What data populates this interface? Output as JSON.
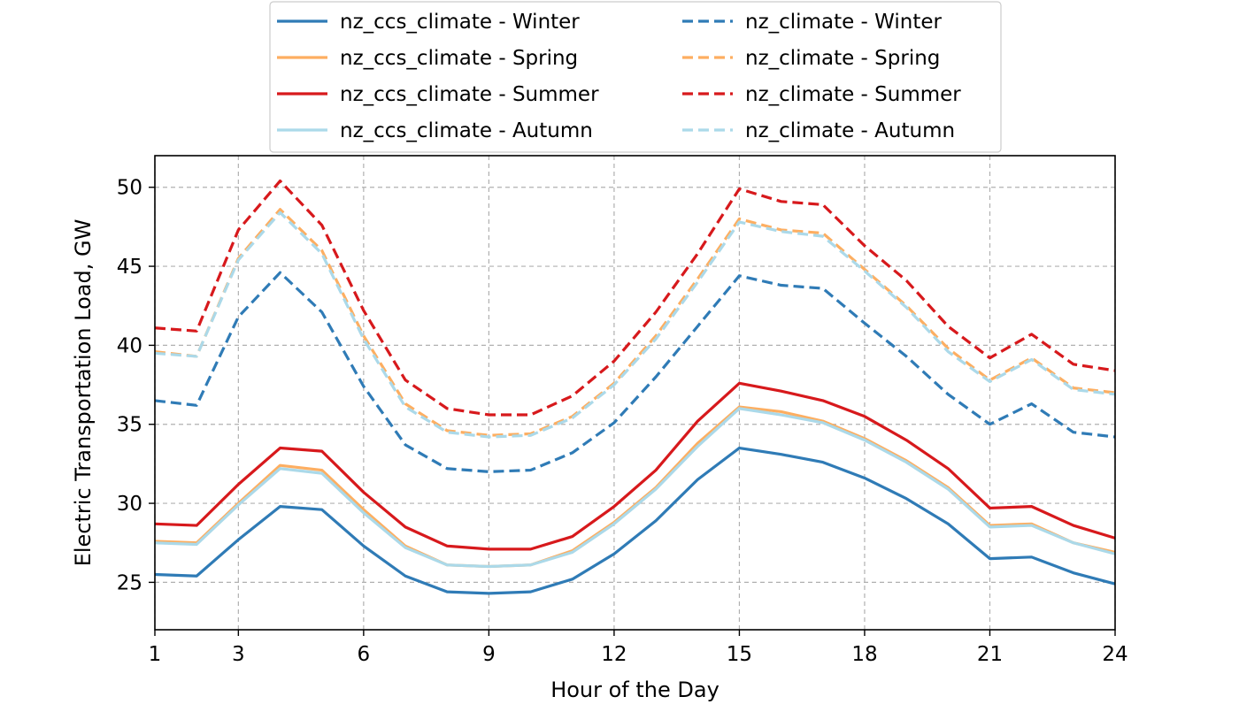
{
  "chart_data": {
    "type": "line",
    "title": "",
    "xlabel": "Hour of the Day",
    "ylabel": "Electric Transportation Load, GW",
    "xlim": [
      1,
      24
    ],
    "ylim": [
      22,
      52
    ],
    "xticks": [
      1,
      3,
      6,
      9,
      12,
      15,
      18,
      21,
      24
    ],
    "yticks": [
      25,
      30,
      35,
      40,
      45,
      50
    ],
    "grid": true,
    "legend_position": "top-center",
    "x": [
      1,
      2,
      3,
      4,
      5,
      6,
      7,
      8,
      9,
      10,
      11,
      12,
      13,
      14,
      15,
      16,
      17,
      18,
      19,
      20,
      21,
      22,
      23,
      24
    ],
    "series": [
      {
        "name": "nz_ccs_climate - Winter",
        "color": "#2f7bb6",
        "dash": "solid",
        "values": [
          25.5,
          25.4,
          27.7,
          29.8,
          29.6,
          27.3,
          25.4,
          24.4,
          24.3,
          24.4,
          25.2,
          26.8,
          28.9,
          31.5,
          33.5,
          33.1,
          32.6,
          31.6,
          30.3,
          28.7,
          26.5,
          26.6,
          25.6,
          24.9
        ]
      },
      {
        "name": "nz_ccs_climate - Spring",
        "color": "#fdae61",
        "dash": "solid",
        "values": [
          27.6,
          27.5,
          30.0,
          32.4,
          32.1,
          29.6,
          27.3,
          26.1,
          26.0,
          26.1,
          27.0,
          28.8,
          31.0,
          33.8,
          36.1,
          35.8,
          35.2,
          34.1,
          32.7,
          31.0,
          28.6,
          28.7,
          27.5,
          26.9
        ]
      },
      {
        "name": "nz_ccs_climate - Summer",
        "color": "#d7191c",
        "dash": "solid",
        "values": [
          28.7,
          28.6,
          31.2,
          33.5,
          33.3,
          30.7,
          28.5,
          27.3,
          27.1,
          27.1,
          27.9,
          29.8,
          32.1,
          35.2,
          37.6,
          37.1,
          36.5,
          35.5,
          34.0,
          32.2,
          29.7,
          29.8,
          28.6,
          27.8
        ]
      },
      {
        "name": "nz_ccs_climate - Autumn",
        "color": "#abd9e9",
        "dash": "solid",
        "values": [
          27.5,
          27.4,
          29.9,
          32.2,
          31.9,
          29.4,
          27.2,
          26.1,
          26.0,
          26.1,
          26.9,
          28.7,
          30.9,
          33.6,
          36.0,
          35.6,
          35.1,
          34.0,
          32.6,
          30.9,
          28.5,
          28.6,
          27.5,
          26.8
        ]
      },
      {
        "name": "nz_climate - Winter",
        "color": "#2f7bb6",
        "dash": "dashed",
        "values": [
          36.5,
          36.2,
          41.8,
          44.6,
          42.1,
          37.4,
          33.7,
          32.2,
          32.0,
          32.1,
          33.2,
          35.1,
          38.0,
          41.2,
          44.4,
          43.8,
          43.6,
          41.4,
          39.3,
          36.9,
          35.0,
          36.3,
          34.5,
          34.2
        ]
      },
      {
        "name": "nz_climate - Spring",
        "color": "#fdae61",
        "dash": "dashed",
        "values": [
          39.6,
          39.3,
          45.5,
          48.6,
          46.0,
          40.6,
          36.3,
          34.6,
          34.3,
          34.4,
          35.5,
          37.6,
          40.6,
          44.2,
          48.0,
          47.3,
          47.1,
          44.8,
          42.5,
          39.8,
          37.8,
          39.2,
          37.3,
          37.0
        ]
      },
      {
        "name": "nz_climate - Summer",
        "color": "#d7191c",
        "dash": "dashed",
        "values": [
          41.1,
          40.9,
          47.3,
          50.4,
          47.6,
          42.2,
          37.8,
          36.0,
          35.6,
          35.6,
          36.8,
          39.0,
          42.1,
          45.8,
          49.9,
          49.1,
          48.9,
          46.3,
          44.1,
          41.2,
          39.2,
          40.7,
          38.8,
          38.4
        ]
      },
      {
        "name": "nz_climate - Autumn",
        "color": "#abd9e9",
        "dash": "dashed",
        "values": [
          39.5,
          39.3,
          45.4,
          48.4,
          45.8,
          40.4,
          36.1,
          34.5,
          34.2,
          34.3,
          35.4,
          37.5,
          40.4,
          44.0,
          47.8,
          47.2,
          46.9,
          44.7,
          42.4,
          39.6,
          37.7,
          39.1,
          37.2,
          36.9
        ]
      }
    ]
  }
}
